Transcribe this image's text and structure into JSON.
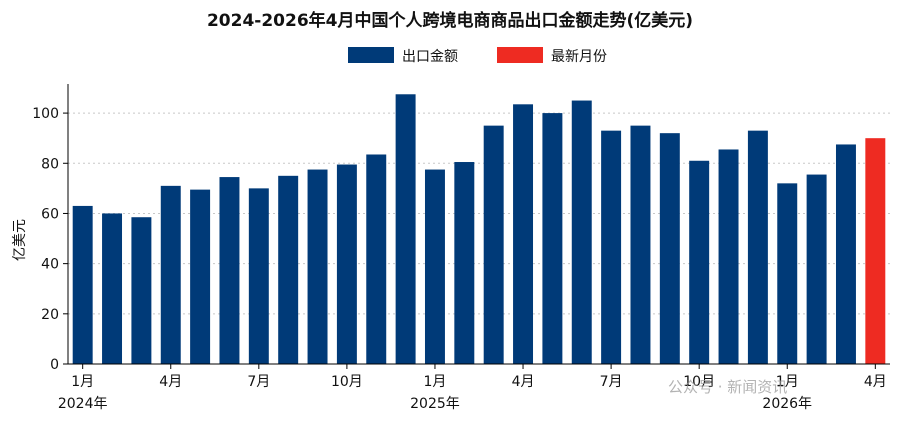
{
  "watermark": "公众号 · 新闻资讯",
  "chart_data": {
    "type": "bar",
    "title": "2024-2026年4月中国个人跨境电商商品出口金额走势(亿美元)",
    "ylabel": "亿美元",
    "ylim": [
      0,
      110
    ],
    "yticks": [
      0,
      20,
      40,
      60,
      80,
      100
    ],
    "grid": true,
    "legend_placement": "top-center",
    "colors": {
      "main": "#003a78",
      "highlight": "#ee2b22",
      "grid": "#c8c8c8",
      "axis": "#000000"
    },
    "legend": [
      {
        "label": "出口金额",
        "color": "#003a78"
      },
      {
        "label": "最新月份",
        "color": "#ee2b22"
      }
    ],
    "categories": [
      "2024-01",
      "2024-02",
      "2024-03",
      "2024-04",
      "2024-05",
      "2024-06",
      "2024-07",
      "2024-08",
      "2024-09",
      "2024-10",
      "2024-11",
      "2024-12",
      "2025-01",
      "2025-02",
      "2025-03",
      "2025-04",
      "2025-05",
      "2025-06",
      "2025-07",
      "2025-08",
      "2025-09",
      "2025-10",
      "2025-11",
      "2025-12",
      "2026-01",
      "2026-02",
      "2026-03",
      "2026-04"
    ],
    "values": [
      63,
      60,
      58.5,
      71,
      69.5,
      74.5,
      70,
      75,
      77.5,
      79.5,
      83.5,
      107.5,
      77.5,
      80.5,
      95,
      103.5,
      100,
      105,
      93,
      95,
      92,
      81,
      85.5,
      93,
      72,
      75.5,
      87.5,
      90
    ],
    "highlight_index": 27,
    "x_tick_labels": [
      {
        "index": 0,
        "label": "1月",
        "year": "2024年"
      },
      {
        "index": 3,
        "label": "4月"
      },
      {
        "index": 6,
        "label": "7月"
      },
      {
        "index": 9,
        "label": "10月"
      },
      {
        "index": 12,
        "label": "1月",
        "year": "2025年"
      },
      {
        "index": 15,
        "label": "4月"
      },
      {
        "index": 18,
        "label": "7月"
      },
      {
        "index": 21,
        "label": "10月"
      },
      {
        "index": 24,
        "label": "1月",
        "year": "2026年"
      },
      {
        "index": 27,
        "label": "4月"
      }
    ]
  }
}
